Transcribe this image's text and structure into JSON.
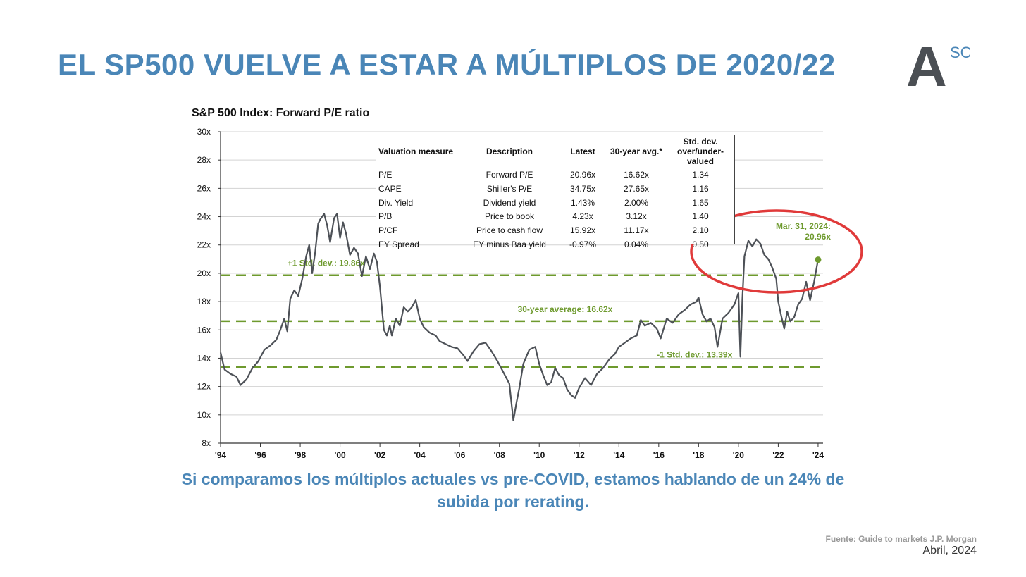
{
  "slide": {
    "title": "EL SP500 VUELVE A ESTAR A MÚLTIPLOS DE 2020/22",
    "logo_letter": "A",
    "logo_superscript": "SC",
    "caption": "Si comparamos los múltiplos actuales vs pre-COVID, estamos hablando de un 24% de subida por rerating.",
    "source": "Fuente: Guide to markets J.P. Morgan",
    "date": "Abril, 2024"
  },
  "colors": {
    "title": "#4a86b7",
    "line": "#4d5157",
    "reference_lines": "#6e9a2e",
    "highlight_circle": "#e03a3a",
    "grid": "#d3d3d3"
  },
  "table": {
    "headers": [
      "Valuation measure",
      "Description",
      "Latest",
      "30-year avg.*",
      "Std. dev. over/under-valued"
    ],
    "rows": [
      [
        "P/E",
        "Forward P/E",
        "20.96x",
        "16.62x",
        "1.34"
      ],
      [
        "CAPE",
        "Shiller's P/E",
        "34.75x",
        "27.65x",
        "1.16"
      ],
      [
        "Div. Yield",
        "Dividend yield",
        "1.43%",
        "2.00%",
        "1.65"
      ],
      [
        "P/B",
        "Price to book",
        "4.23x",
        "3.12x",
        "1.40"
      ],
      [
        "P/CF",
        "Price to cash flow",
        "15.92x",
        "11.17x",
        "2.10"
      ],
      [
        "EY Spread",
        "EY minus Baa yield",
        "-0.97%",
        "0.04%",
        "0.50"
      ]
    ]
  },
  "chart_data": {
    "type": "line",
    "title": "S&P 500 Index: Forward P/E ratio",
    "ylim": [
      8,
      30
    ],
    "xlim": [
      1994,
      2024.25
    ],
    "y_ticks": [
      "8x",
      "10x",
      "12x",
      "14x",
      "16x",
      "18x",
      "20x",
      "22x",
      "24x",
      "26x",
      "28x",
      "30x"
    ],
    "y_tick_values": [
      8,
      10,
      12,
      14,
      16,
      18,
      20,
      22,
      24,
      26,
      28,
      30
    ],
    "x_ticks": [
      "'94",
      "'96",
      "'98",
      "'00",
      "'02",
      "'04",
      "'06",
      "'08",
      "'10",
      "'12",
      "'14",
      "'16",
      "'18",
      "'20",
      "'22",
      "'24"
    ],
    "x_tick_values": [
      1994,
      1996,
      1998,
      2000,
      2002,
      2004,
      2006,
      2008,
      2010,
      2012,
      2014,
      2016,
      2018,
      2020,
      2022,
      2024
    ],
    "grid": "horizontal",
    "reference_lines": [
      {
        "label": "+1 Std. dev.: 19.86x",
        "value": 19.86,
        "label_x": 1999.3
      },
      {
        "label": "30-year average: 16.62x",
        "value": 16.62,
        "label_x": 2011.3
      },
      {
        "label": "-1 Std. dev.: 13.39x",
        "value": 13.39,
        "label_x": 2017.8
      }
    ],
    "endpoint": {
      "label_line1": "Mar. 31, 2024:",
      "label_line2": "20.96x",
      "x": 2024.0,
      "y": 20.96
    },
    "series": [
      {
        "x": [
          1994.0,
          1994.2,
          1994.5,
          1994.8,
          1995.0,
          1995.3,
          1995.6,
          1995.9,
          1996.2,
          1996.5,
          1996.8,
          1997.0,
          1997.2,
          1997.35,
          1997.5,
          1997.7,
          1997.9,
          1998.1,
          1998.3,
          1998.45,
          1998.6,
          1998.75,
          1998.9,
          1999.0,
          1999.2,
          1999.35,
          1999.5,
          1999.7,
          1999.85,
          2000.0,
          2000.15,
          2000.3,
          2000.5,
          2000.7,
          2000.9,
          2001.1,
          2001.3,
          2001.5,
          2001.7,
          2001.85,
          2002.0,
          2002.2,
          2002.35,
          2002.5,
          2002.6,
          2002.8,
          2003.0,
          2003.2,
          2003.4,
          2003.6,
          2003.8,
          2004.0,
          2004.2,
          2004.5,
          2004.8,
          2005.0,
          2005.3,
          2005.6,
          2005.9,
          2006.2,
          2006.4,
          2006.7,
          2007.0,
          2007.3,
          2007.6,
          2007.9,
          2008.2,
          2008.5,
          2008.7,
          2008.85,
          2009.0,
          2009.2,
          2009.5,
          2009.8,
          2010.0,
          2010.2,
          2010.4,
          2010.6,
          2010.8,
          2011.0,
          2011.2,
          2011.4,
          2011.6,
          2011.8,
          2012.0,
          2012.3,
          2012.6,
          2012.9,
          2013.2,
          2013.5,
          2013.8,
          2014.0,
          2014.3,
          2014.6,
          2014.9,
          2015.1,
          2015.3,
          2015.6,
          2015.9,
          2016.1,
          2016.4,
          2016.7,
          2017.0,
          2017.3,
          2017.6,
          2017.9,
          2018.0,
          2018.2,
          2018.4,
          2018.6,
          2018.8,
          2018.95,
          2019.2,
          2019.5,
          2019.8,
          2020.0,
          2020.1,
          2020.2,
          2020.3,
          2020.5,
          2020.7,
          2020.9,
          2021.1,
          2021.3,
          2021.5,
          2021.7,
          2021.9,
          2022.0,
          2022.15,
          2022.3,
          2022.45,
          2022.6,
          2022.8,
          2023.0,
          2023.2,
          2023.4,
          2023.6,
          2023.8,
          2024.0
        ],
        "y": [
          14.4,
          13.2,
          12.9,
          12.7,
          12.1,
          12.5,
          13.3,
          13.8,
          14.6,
          14.9,
          15.3,
          16.0,
          16.8,
          15.9,
          18.2,
          18.8,
          18.4,
          19.6,
          21.2,
          22.0,
          20.0,
          21.5,
          23.5,
          23.8,
          24.2,
          23.4,
          22.2,
          23.9,
          24.2,
          22.5,
          23.6,
          22.8,
          21.3,
          21.8,
          21.4,
          19.8,
          21.2,
          20.3,
          21.4,
          20.8,
          19.1,
          16.0,
          15.6,
          16.3,
          15.6,
          16.8,
          16.3,
          17.6,
          17.3,
          17.6,
          18.1,
          16.8,
          16.2,
          15.8,
          15.6,
          15.2,
          15.0,
          14.8,
          14.7,
          14.2,
          13.8,
          14.5,
          15.0,
          15.1,
          14.5,
          13.8,
          13.0,
          12.2,
          9.6,
          10.8,
          11.9,
          13.6,
          14.6,
          14.8,
          13.6,
          12.8,
          12.1,
          12.3,
          13.3,
          12.8,
          12.6,
          11.8,
          11.4,
          11.2,
          11.9,
          12.6,
          12.1,
          12.9,
          13.3,
          13.9,
          14.3,
          14.8,
          15.1,
          15.4,
          15.6,
          16.7,
          16.3,
          16.5,
          16.1,
          15.4,
          16.8,
          16.5,
          17.1,
          17.4,
          17.8,
          18.0,
          18.3,
          17.1,
          16.6,
          16.8,
          16.2,
          14.8,
          16.8,
          17.2,
          17.8,
          18.6,
          14.1,
          18.2,
          21.2,
          22.3,
          21.9,
          22.4,
          22.1,
          21.3,
          21.0,
          20.4,
          19.6,
          18.0,
          17.0,
          16.1,
          17.3,
          16.6,
          16.9,
          17.8,
          18.2,
          19.4,
          18.1,
          19.4,
          20.96
        ]
      }
    ]
  }
}
